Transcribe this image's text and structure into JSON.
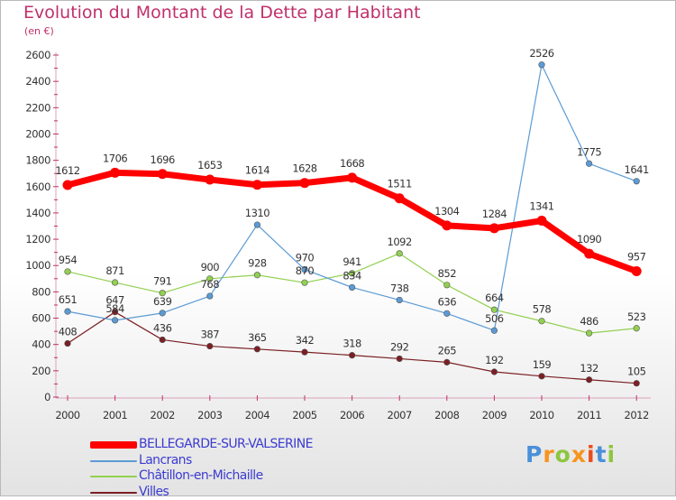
{
  "chart_data": {
    "type": "line",
    "title": "Evolution du Montant de la Dette par Habitant",
    "subtitle": "(en €)",
    "x": [
      "2000",
      "2001",
      "2002",
      "2003",
      "2004",
      "2005",
      "2006",
      "2007",
      "2008",
      "2009",
      "2010",
      "2011",
      "2012"
    ],
    "ylim": [
      0,
      2600
    ],
    "yticks": [
      0,
      200,
      400,
      600,
      800,
      1000,
      1200,
      1400,
      1600,
      1800,
      2000,
      2200,
      2400,
      2600
    ],
    "grid": false,
    "legend_placement": "bottom-left",
    "series": [
      {
        "name": "BELLEGARDE-SUR-VALSERINE",
        "color": "#ff0000",
        "values": [
          1612,
          1706,
          1696,
          1653,
          1614,
          1628,
          1668,
          1511,
          1304,
          1284,
          1341,
          1090,
          957
        ]
      },
      {
        "name": "Lancrans",
        "color": "#5b9bd5",
        "values": [
          651,
          584,
          639,
          768,
          1310,
          970,
          834,
          738,
          636,
          506,
          2526,
          1775,
          1641
        ]
      },
      {
        "name": "Châtillon-en-Michaille",
        "color": "#92d050",
        "values": [
          954,
          871,
          791,
          900,
          928,
          870,
          941,
          1092,
          852,
          664,
          578,
          486,
          523
        ]
      },
      {
        "name": "Villes",
        "color": "#7b1f24",
        "values": [
          408,
          647,
          436,
          387,
          365,
          342,
          318,
          292,
          265,
          192,
          159,
          132,
          105
        ]
      }
    ]
  },
  "logo": {
    "letters": [
      "P",
      "r",
      "o",
      "x",
      "i",
      "t",
      "i"
    ],
    "colors": [
      "#4a90d9",
      "#f7941d",
      "#8dc63f",
      "#f7941d",
      "#e94e1b",
      "#4a90d9",
      "#8dc63f"
    ]
  }
}
